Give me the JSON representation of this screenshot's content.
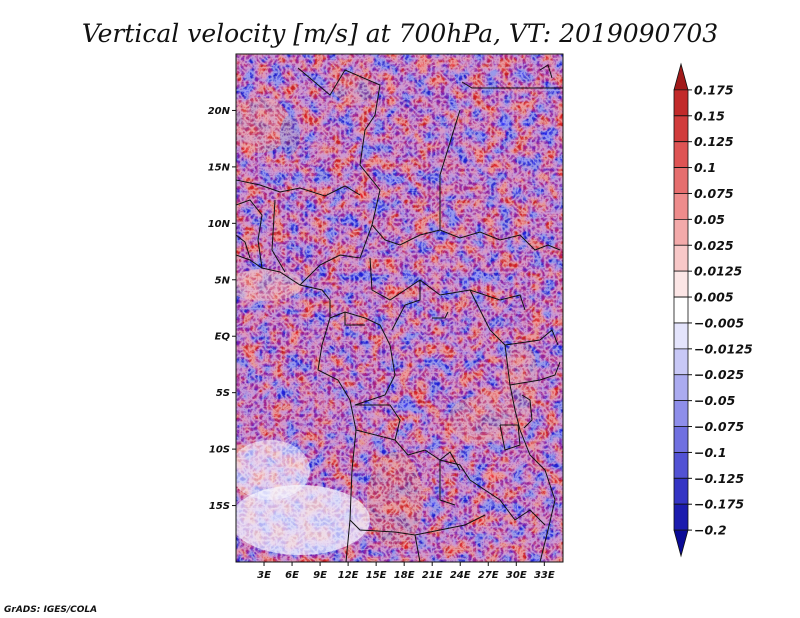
{
  "title": "Vertical velocity [m/s] at 700hPa, VT: 2019090703",
  "credit": "GrADS: IGES/COLA",
  "chart_data": {
    "type": "heatmap",
    "field": "vertical velocity",
    "units": "m/s",
    "level": "700hPa",
    "valid_time": "2019090703",
    "lon_range": [
      0,
      35
    ],
    "lat_range": [
      -20,
      25
    ],
    "x_ticks": [
      {
        "value": 3,
        "label": "3E"
      },
      {
        "value": 6,
        "label": "6E"
      },
      {
        "value": 9,
        "label": "9E"
      },
      {
        "value": 12,
        "label": "12E"
      },
      {
        "value": 15,
        "label": "15E"
      },
      {
        "value": 18,
        "label": "18E"
      },
      {
        "value": 21,
        "label": "21E"
      },
      {
        "value": 24,
        "label": "24E"
      },
      {
        "value": 27,
        "label": "27E"
      },
      {
        "value": 30,
        "label": "30E"
      },
      {
        "value": 33,
        "label": "33E"
      }
    ],
    "y_ticks": [
      {
        "value": 20,
        "label": "20N"
      },
      {
        "value": 15,
        "label": "15N"
      },
      {
        "value": 10,
        "label": "10N"
      },
      {
        "value": 5,
        "label": "5N"
      },
      {
        "value": 0,
        "label": "EQ"
      },
      {
        "value": -5,
        "label": "5S"
      },
      {
        "value": -10,
        "label": "10S"
      },
      {
        "value": -15,
        "label": "15S"
      }
    ],
    "colorbar": {
      "levels": [
        "0.175",
        "0.15",
        "0.125",
        "0.1",
        "0.075",
        "0.05",
        "0.025",
        "0.0125",
        "0.005",
        "−0.005",
        "−0.0125",
        "−0.025",
        "−0.05",
        "−0.075",
        "−0.1",
        "−0.125",
        "−0.175",
        "−0.2"
      ],
      "colors": [
        "#a11a1a",
        "#c22a2a",
        "#d13c3c",
        "#de5454",
        "#e66e6e",
        "#ee8c8c",
        "#f3aaaa",
        "#f8c8c8",
        "#fce6e6",
        "#ffffff",
        "#e4e4fc",
        "#c8c8f6",
        "#ababf0",
        "#8e8eea",
        "#7070e0",
        "#5252d4",
        "#3434c4",
        "#1c1cae",
        "#0a0a96"
      ]
    },
    "grid": false
  }
}
